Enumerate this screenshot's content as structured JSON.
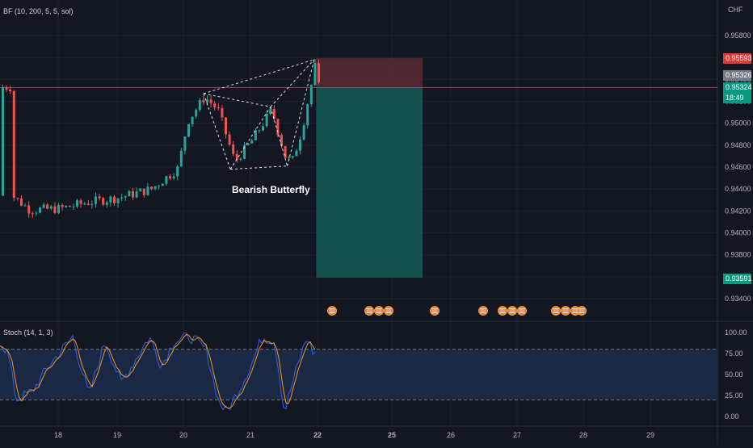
{
  "header": {
    "indicator_label": "BF (10, 200, 5, 5, sol)",
    "currency": "CHF"
  },
  "colors": {
    "background": "#131722",
    "up": "#26a69a",
    "down": "#ef5350",
    "grid": "#1e2230",
    "text": "#b2b5be",
    "stoch_k": "#2962ff",
    "stoch_d": "#ff9800",
    "stop_zone": "#5b2a33",
    "target_zone": "#145c55"
  },
  "price_axis": {
    "ticks": [
      "0.95800",
      "0.95600",
      "0.95400",
      "0.95200",
      "0.95000",
      "0.94800",
      "0.94600",
      "0.94400",
      "0.94200",
      "0.94000",
      "0.93800",
      "0.93600",
      "0.93400"
    ],
    "stop_label": "0.95593",
    "current_label": "0.95326",
    "last_label": "0.95324",
    "countdown": "18:49",
    "target_label": "0.93591"
  },
  "pattern": {
    "label": "Bearish Butterfly"
  },
  "stoch": {
    "label": "Stoch (14, 1, 3)",
    "ticks": [
      "100.00",
      "75.00",
      "50.00",
      "25.00",
      "0.00"
    ]
  },
  "time_axis": {
    "labels": [
      "18",
      "19",
      "20",
      "21",
      "22",
      "25",
      "26",
      "27",
      "28",
      "29"
    ]
  },
  "chart_data": {
    "type": "candlestick",
    "y_range": [
      0.9325,
      0.9605
    ],
    "xpattern": [
      {
        "x": 20.3,
        "y": 0.9527
      },
      {
        "x": 20.7,
        "y": 0.9458
      },
      {
        "x": 21.3,
        "y": 0.9515
      },
      {
        "x": 21.55,
        "y": 0.9461
      },
      {
        "x": 21.95,
        "y": 0.9558
      }
    ],
    "position": {
      "type": "short",
      "entry": 0.95326,
      "stop": 0.95593,
      "target": 0.93591
    },
    "stoch_levels": [
      80,
      20
    ],
    "stoch_range": [
      0,
      100
    ]
  }
}
